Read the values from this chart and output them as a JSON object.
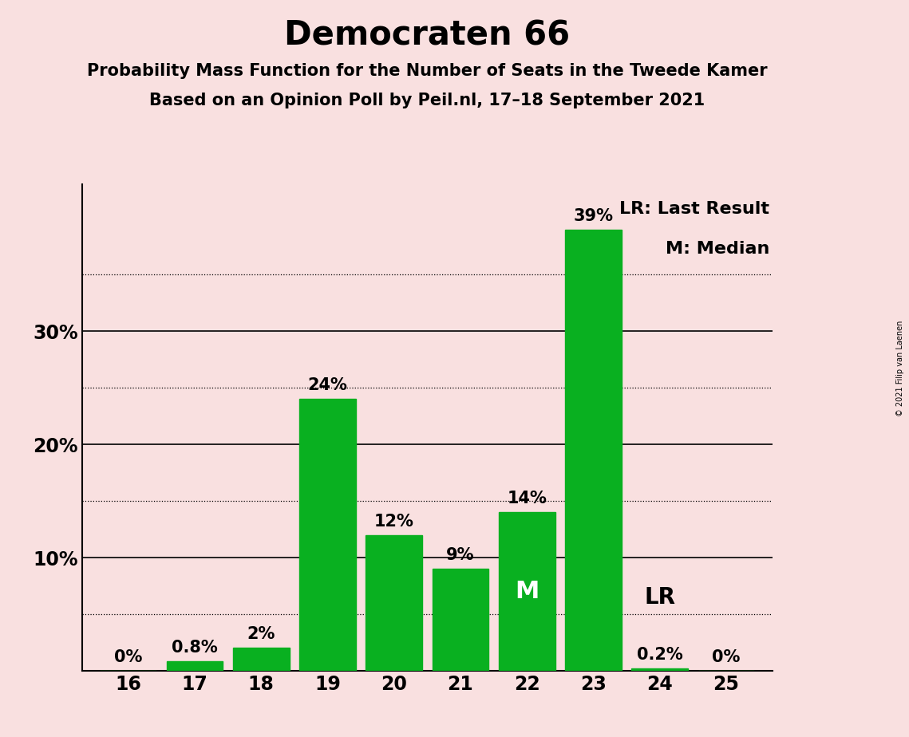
{
  "title": "Democraten 66",
  "subtitle1": "Probability Mass Function for the Number of Seats in the Tweede Kamer",
  "subtitle2": "Based on an Opinion Poll by Peil.nl, 17–18 September 2021",
  "copyright": "© 2021 Filip van Laenen",
  "seats": [
    16,
    17,
    18,
    19,
    20,
    21,
    22,
    23,
    24,
    25
  ],
  "values": [
    0.0,
    0.8,
    2.0,
    24.0,
    12.0,
    9.0,
    14.0,
    39.0,
    0.2,
    0.0
  ],
  "bar_color": "#09b020",
  "background_color": "#f9e0e0",
  "median_seat": 22,
  "lr_seat": 24,
  "legend_lr": "LR: Last Result",
  "legend_m": "M: Median",
  "bar_labels": [
    "0%",
    "0.8%",
    "2%",
    "24%",
    "12%",
    "9%",
    "14%",
    "39%",
    "0.2%",
    "0%"
  ]
}
